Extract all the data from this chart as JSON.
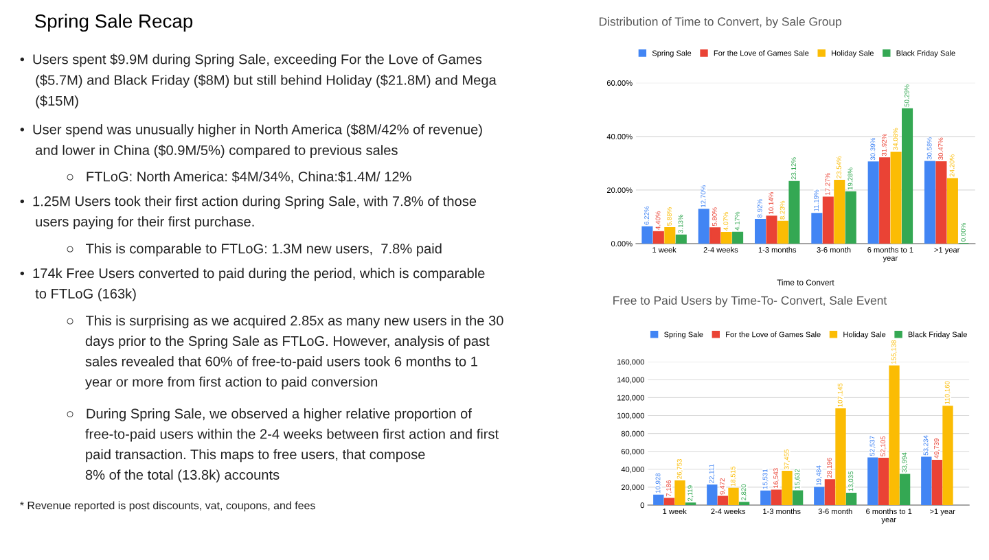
{
  "chart_data": [
    {
      "type": "other",
      "title": "Spring Sale Recap",
      "annotations": [
        "•  Users spent $9.9M during Spring Sale, exceeding For the Love of Games\n    ($5.7M) and Black Friday ($8M) but still behind Holiday ($21.8M) and Mega\n    ($15M)",
        "•  User spend was unusually higher in North America ($8M/42% of revenue)\n    and lower in China ($0.9M/5%) compared to previous sales",
        "            ○   FTLoG: North America: $4M/34%, China:$1.4M/ 12%",
        "•  1.25M Users took their first action during Spring Sale, with 7.8% of those\n    users paying for their first purchase.",
        "            ○   This is comparable to FTLoG: 1.3M new users,  7.8% paid",
        "•  174k Free Users converted to paid during the period, which is comparable\n    to FTLoG (163k)",
        "            ○   This is surprising as we acquired 2.85x as many new users in the 30\n                 days prior to the Spring Sale as FTLoG. However, analysis of past\n                 sales revealed that 60% of free-to-paid users took 6 months to 1\n                 year or more from first action to paid conversion",
        "            ○   During Spring Sale, we observed a higher relative proportion of\n                 free-to-paid users within the 2-4 weeks between first action and first\n                 paid transaction. This maps to free users, that compose\n                 8% of the total (13.8k) accounts",
        "* Revenue reported is post discounts, vat, coupons, and fees"
      ]
    },
    {
      "type": "bar",
      "title": "Distribution of Time to Convert, by Sale Group",
      "xlabel": "Time to Convert",
      "categories": [
        "1 week",
        "2-4 weeks",
        "1-3 months",
        "3-6 month",
        "6 months to 1\nyear",
        ">1 year"
      ],
      "series": [
        {
          "name": "Spring Sale",
          "color": "#4285f4",
          "values": [
            6.22,
            12.7,
            8.92,
            11.19,
            30.39,
            30.58
          ],
          "value_labels": [
            "6.22%",
            "12.70%",
            "8.92%",
            "11.19%",
            "30.39%",
            "30.58%"
          ]
        },
        {
          "name": "For the Love of Games Sale",
          "color": "#ea4335",
          "values": [
            4.4,
            5.8,
            10.14,
            17.27,
            31.92,
            30.47
          ],
          "value_labels": [
            "4.40%",
            "5.80%",
            "10.14%",
            "17.27%",
            "31.92%",
            "30.47%"
          ]
        },
        {
          "name": "Holiday Sale",
          "color": "#fbbc04",
          "values": [
            5.88,
            4.07,
            8.23,
            23.54,
            34.08,
            24.2
          ],
          "value_labels": [
            "5.88%",
            "4.07%",
            "8.23%",
            "23.54%",
            "34.08%",
            "24.20%"
          ]
        },
        {
          "name": "Black Friday Sale",
          "color": "#34a853",
          "values": [
            3.13,
            4.17,
            23.12,
            19.28,
            50.29,
            0
          ],
          "value_labels": [
            "3.13%",
            "4.17%",
            "23.12%",
            "19.28%",
            "50.29%",
            "0.00%"
          ]
        }
      ],
      "ylim": [
        0,
        60
      ],
      "yticks": [
        {
          "value": 0,
          "label": "0.00%"
        },
        {
          "value": 20,
          "label": "20.00%"
        },
        {
          "value": 40,
          "label": "40.00%"
        },
        {
          "value": 60,
          "label": "60.00%"
        }
      ],
      "grid": "y",
      "legend": "top"
    },
    {
      "type": "bar",
      "title": "Free to Paid Users by Time-To- Convert, Sale Event",
      "categories": [
        "1 week",
        "2-4 weeks",
        "1-3 months",
        "3-6 month",
        "6 months to 1\nyear",
        ">1 year"
      ],
      "series": [
        {
          "name": "Spring Sale",
          "color": "#4285f4",
          "values": [
            10928,
            22111,
            15531,
            19484,
            52537,
            53234
          ],
          "value_labels": [
            "10,928",
            "22,111",
            "15,531",
            "19,484",
            "52,537",
            "53,234"
          ]
        },
        {
          "name": "For the Love of Games Sale",
          "color": "#ea4335",
          "values": [
            7186,
            9472,
            16543,
            28196,
            52105,
            49739
          ],
          "value_labels": [
            "7,186",
            "9,472",
            "16,543",
            "28,196",
            "52,105",
            "49,739"
          ]
        },
        {
          "name": "Holiday Sale",
          "color": "#fbbc04",
          "values": [
            26753,
            18515,
            37455,
            107145,
            155138,
            110160
          ],
          "value_labels": [
            "26,753",
            "18,515",
            "37,455",
            "107,145",
            "155,138",
            "110,160"
          ]
        },
        {
          "name": "Black Friday Sale",
          "color": "#34a853",
          "values": [
            2119,
            2820,
            15632,
            13035,
            33994,
            null
          ],
          "value_labels": [
            "2,119",
            "2,820",
            "15,632",
            "13,035",
            "33,994",
            null
          ]
        }
      ],
      "ylim": [
        0,
        160000
      ],
      "yticks": [
        0,
        {
          "value": 20000,
          "label": "20,000"
        },
        {
          "value": 40000,
          "label": "40,000"
        },
        {
          "value": 60000,
          "label": "60,000"
        },
        {
          "value": 80000,
          "label": "80,000"
        },
        {
          "value": 100000,
          "label": "100,000"
        },
        {
          "value": 120000,
          "label": "120,000"
        },
        {
          "value": 140000,
          "label": "140,000"
        },
        {
          "value": 160000,
          "label": "160,000"
        }
      ],
      "grid": "y",
      "legend": "top"
    }
  ]
}
